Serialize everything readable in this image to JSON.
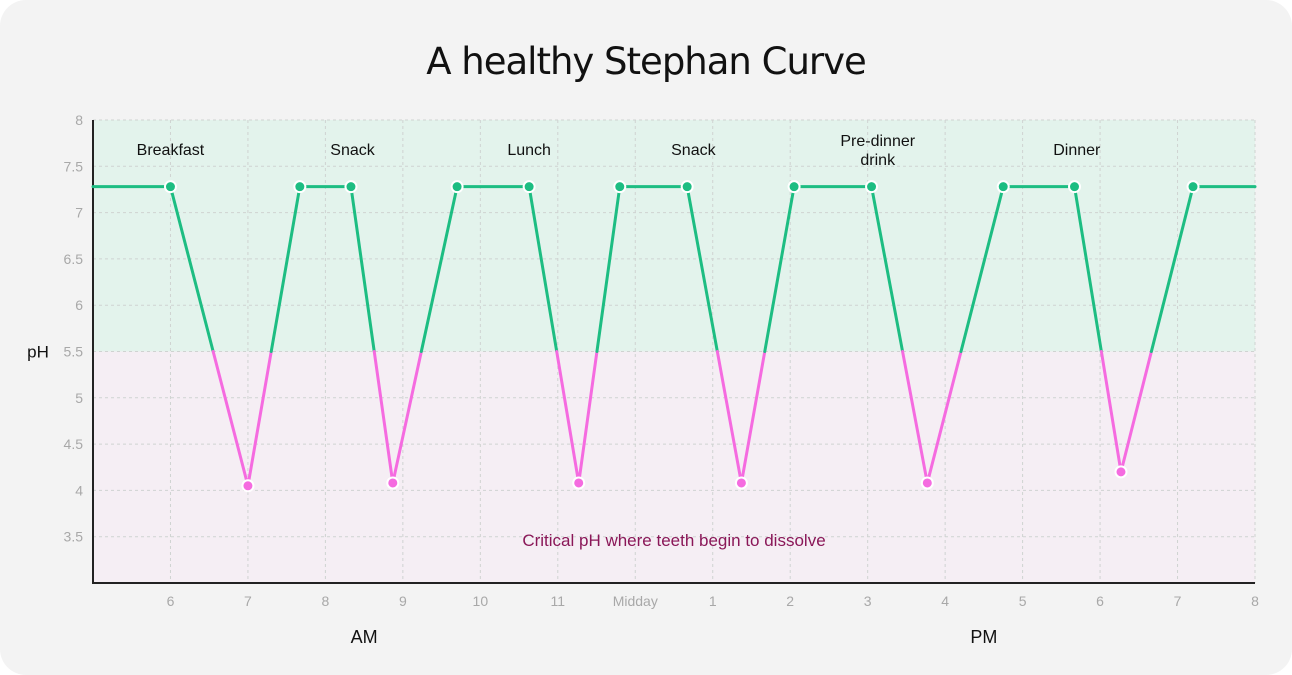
{
  "chart_data": {
    "type": "line",
    "title": "A healthy Stephan Curve",
    "ylabel": "pH",
    "xlabel": "",
    "ylim": [
      3,
      8
    ],
    "xlim": [
      5,
      20
    ],
    "yticks": [
      3.5,
      4,
      4.5,
      5,
      5.5,
      6,
      6.5,
      7,
      7.5,
      8
    ],
    "xticks": [
      {
        "x": 6,
        "label": "6"
      },
      {
        "x": 7,
        "label": "7"
      },
      {
        "x": 8,
        "label": "8"
      },
      {
        "x": 9,
        "label": "9"
      },
      {
        "x": 10,
        "label": "10"
      },
      {
        "x": 11,
        "label": "11"
      },
      {
        "x": 12,
        "label": "Midday"
      },
      {
        "x": 13,
        "label": "1"
      },
      {
        "x": 14,
        "label": "2"
      },
      {
        "x": 15,
        "label": "3"
      },
      {
        "x": 16,
        "label": "4"
      },
      {
        "x": 17,
        "label": "5"
      },
      {
        "x": 18,
        "label": "6"
      },
      {
        "x": 19,
        "label": "7"
      },
      {
        "x": 20,
        "label": "8"
      }
    ],
    "periods": [
      {
        "label": "AM",
        "x": 8.5
      },
      {
        "label": "PM",
        "x": 16.5
      }
    ],
    "grid": true,
    "critical_ph": 5.5,
    "critical_label": "Critical pH where teeth begin to dissolve",
    "colors": {
      "safe_zone": "#e3f3ec",
      "danger_zone": "#f5eef4",
      "safe_line": "#1dbd82",
      "danger_line": "#f56be0",
      "note_text": "#8a1758"
    },
    "series": [
      {
        "x": [
          5,
          6.0,
          7.0,
          7.67,
          8.33,
          8.87,
          9.7,
          10.63,
          11.27,
          11.8,
          12.67,
          13.37,
          14.05,
          15.05,
          15.77,
          16.75,
          17.67,
          18.27,
          19.2,
          20
        ],
        "y": [
          7.28,
          7.28,
          4.05,
          7.28,
          7.28,
          4.08,
          7.28,
          7.28,
          4.08,
          7.28,
          7.28,
          4.08,
          7.28,
          7.28,
          4.08,
          7.28,
          7.28,
          4.2,
          7.28,
          7.28
        ]
      }
    ],
    "points": [
      {
        "x": 6.0,
        "y": 7.28
      },
      {
        "x": 7.0,
        "y": 4.05
      },
      {
        "x": 7.67,
        "y": 7.28
      },
      {
        "x": 8.33,
        "y": 7.28
      },
      {
        "x": 8.87,
        "y": 4.08
      },
      {
        "x": 9.7,
        "y": 7.28
      },
      {
        "x": 10.63,
        "y": 7.28
      },
      {
        "x": 11.27,
        "y": 4.08
      },
      {
        "x": 11.8,
        "y": 7.28
      },
      {
        "x": 12.67,
        "y": 7.28
      },
      {
        "x": 13.37,
        "y": 4.08
      },
      {
        "x": 14.05,
        "y": 7.28
      },
      {
        "x": 15.05,
        "y": 7.28
      },
      {
        "x": 15.77,
        "y": 4.08
      },
      {
        "x": 16.75,
        "y": 7.28
      },
      {
        "x": 17.67,
        "y": 7.28
      },
      {
        "x": 18.27,
        "y": 4.2
      },
      {
        "x": 19.2,
        "y": 7.28
      }
    ],
    "annotations": [
      {
        "lines": [
          "Breakfast"
        ],
        "x": 6.0,
        "y": 7.62
      },
      {
        "lines": [
          "Snack"
        ],
        "x": 8.35,
        "y": 7.62
      },
      {
        "lines": [
          "Lunch"
        ],
        "x": 10.63,
        "y": 7.62
      },
      {
        "lines": [
          "Snack"
        ],
        "x": 12.75,
        "y": 7.62
      },
      {
        "lines": [
          "Pre-dinner",
          "drink"
        ],
        "x": 15.13,
        "y": 7.72
      },
      {
        "lines": [
          "Dinner"
        ],
        "x": 17.7,
        "y": 7.62
      }
    ]
  }
}
